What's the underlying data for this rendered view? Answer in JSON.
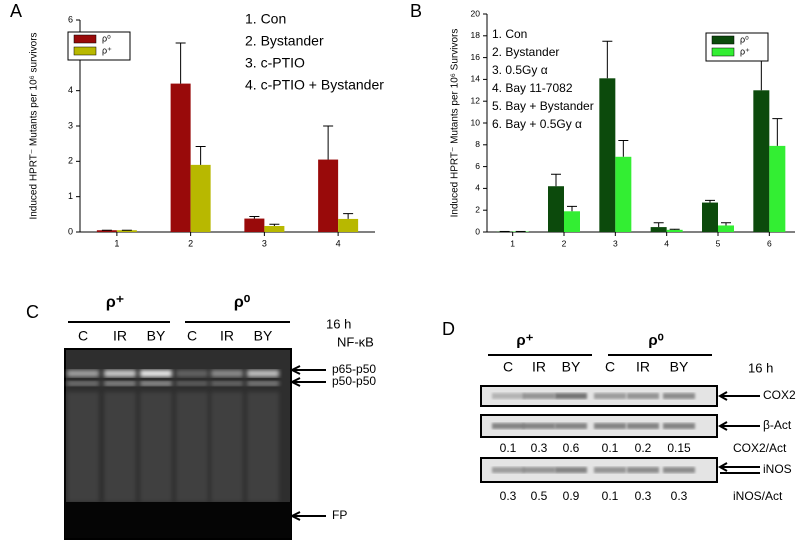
{
  "chart_data": [
    {
      "type": "bar",
      "panel_label": "A",
      "y_label": "Induced HPRT⁻ Mutants per 10⁶ survivors",
      "categories": [
        "1",
        "2",
        "3",
        "4"
      ],
      "series": [
        {
          "name": "ρ⁰",
          "color": "#990a0a",
          "values": [
            0.05,
            4.2,
            0.38,
            2.05
          ],
          "errors": [
            0,
            1.15,
            0.06,
            0.95
          ]
        },
        {
          "name": "ρ⁺",
          "color": "#b8b800",
          "values": [
            0.05,
            1.9,
            0.17,
            0.37
          ],
          "errors": [
            0,
            0.52,
            0.05,
            0.15
          ]
        }
      ],
      "annotations": [
        "1. Con",
        "2. Bystander",
        "3. c-PTIO",
        "4. c-PTIO + Bystander"
      ],
      "ylim": [
        0,
        6
      ],
      "yticks": [
        0,
        1,
        2,
        3,
        4,
        5,
        6
      ],
      "legend": "upper left"
    },
    {
      "type": "bar",
      "panel_label": "B",
      "y_label": "Induced HPRT⁻ Mutants per 10⁶ Survivors",
      "categories": [
        "1",
        "2",
        "3",
        "4",
        "5",
        "6"
      ],
      "series": [
        {
          "name": "ρ⁰",
          "color": "#0c4a0c",
          "values": [
            0.05,
            4.2,
            14.1,
            0.45,
            2.7,
            13.0
          ],
          "errors": [
            0,
            1.1,
            3.4,
            0.4,
            0.2,
            3.2
          ]
        },
        {
          "name": "ρ⁺",
          "color": "#33ee33",
          "values": [
            0.05,
            1.9,
            6.9,
            0.2,
            0.6,
            7.9
          ],
          "errors": [
            0,
            0.45,
            1.5,
            0.05,
            0.25,
            2.5
          ]
        }
      ],
      "annotations": [
        "1. Con",
        "2. Bystander",
        "3. 0.5Gy α",
        "4. Bay 11-7082",
        "5. Bay + Bystander",
        "6. Bay + 0.5Gy α"
      ],
      "ylim": [
        0,
        20
      ],
      "yticks": [
        0,
        2,
        4,
        6,
        8,
        10,
        12,
        14,
        16,
        18,
        20
      ],
      "legend": "upper right"
    }
  ],
  "panel_c": {
    "label": "C",
    "groups": [
      "ρ⁺",
      "ρ⁰"
    ],
    "lanes": [
      "C",
      "IR",
      "BY",
      "C",
      "IR",
      "BY"
    ],
    "time": "16 h",
    "target": "NF-κB",
    "bands": [
      "p65-p50",
      "p50-p50",
      "FP"
    ]
  },
  "panel_d": {
    "label": "D",
    "groups": [
      "ρ⁺",
      "ρ⁰"
    ],
    "lanes": [
      "C",
      "IR",
      "BY",
      "C",
      "IR",
      "BY"
    ],
    "time": "16 h",
    "blots": [
      "COX2",
      "β-Act",
      "iNOS"
    ],
    "ratios": [
      {
        "name": "COX2/Act",
        "values": [
          0.1,
          0.3,
          0.6,
          0.1,
          0.2,
          0.15
        ]
      },
      {
        "name": "iNOS/Act",
        "values": [
          0.3,
          0.5,
          0.9,
          0.1,
          0.3,
          0.3
        ]
      }
    ]
  }
}
